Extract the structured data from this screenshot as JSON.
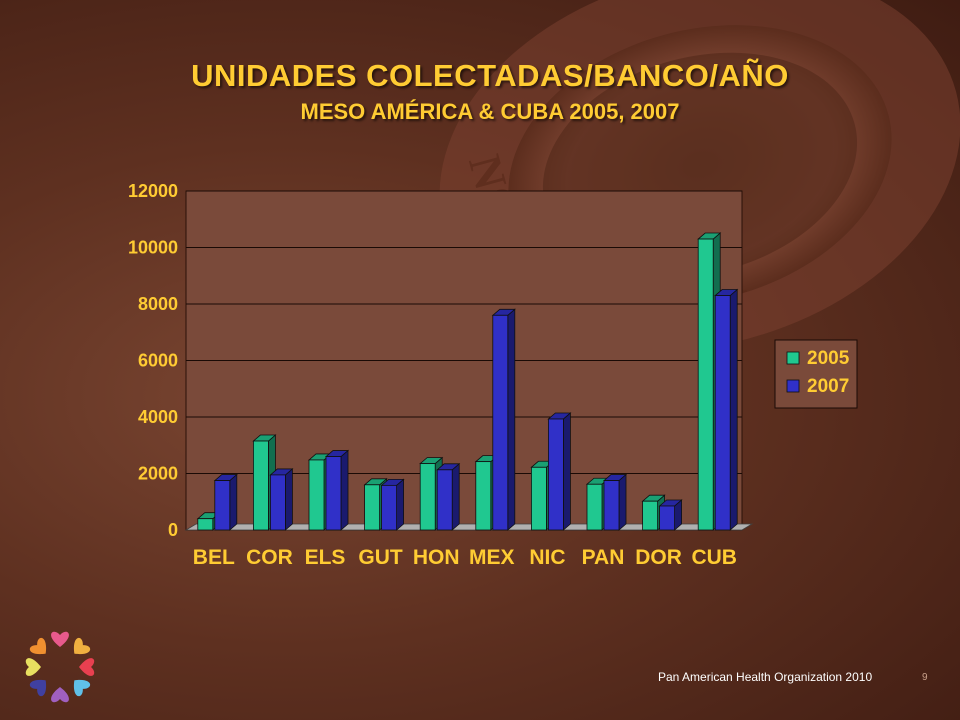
{
  "slide": {
    "title": "UNIDADES COLECTADAS/BANCO/AÑO",
    "subtitle": "MESO AMÉRICA & CUBA 2005, 2007",
    "footer": "Pan American Health Organization 2010",
    "page_number": "9",
    "seal_text": "NOVI MUNDI"
  },
  "colors": {
    "series_2005": "#20c890",
    "series_2007": "#3030c8",
    "text": "#ffcc33",
    "plot_bg": "#7a4a3a"
  },
  "icons": {
    "logo": "hearts-circle-icon"
  },
  "chart_data": {
    "type": "bar",
    "categories": [
      "BEL",
      "COR",
      "ELS",
      "GUT",
      "HON",
      "MEX",
      "NIC",
      "PAN",
      "DOR",
      "CUB"
    ],
    "series": [
      {
        "name": "2005",
        "values": [
          400,
          3150,
          2480,
          1600,
          2350,
          2420,
          2220,
          1620,
          1020,
          10300
        ]
      },
      {
        "name": "2007",
        "values": [
          1750,
          1950,
          2600,
          1580,
          2130,
          7600,
          3930,
          1750,
          850,
          8300
        ]
      }
    ],
    "ylim": [
      0,
      12000
    ],
    "yticks": [
      0,
      2000,
      4000,
      6000,
      8000,
      10000,
      12000
    ],
    "grid": true,
    "legend": "right",
    "title": "",
    "xlabel": "",
    "ylabel": ""
  }
}
